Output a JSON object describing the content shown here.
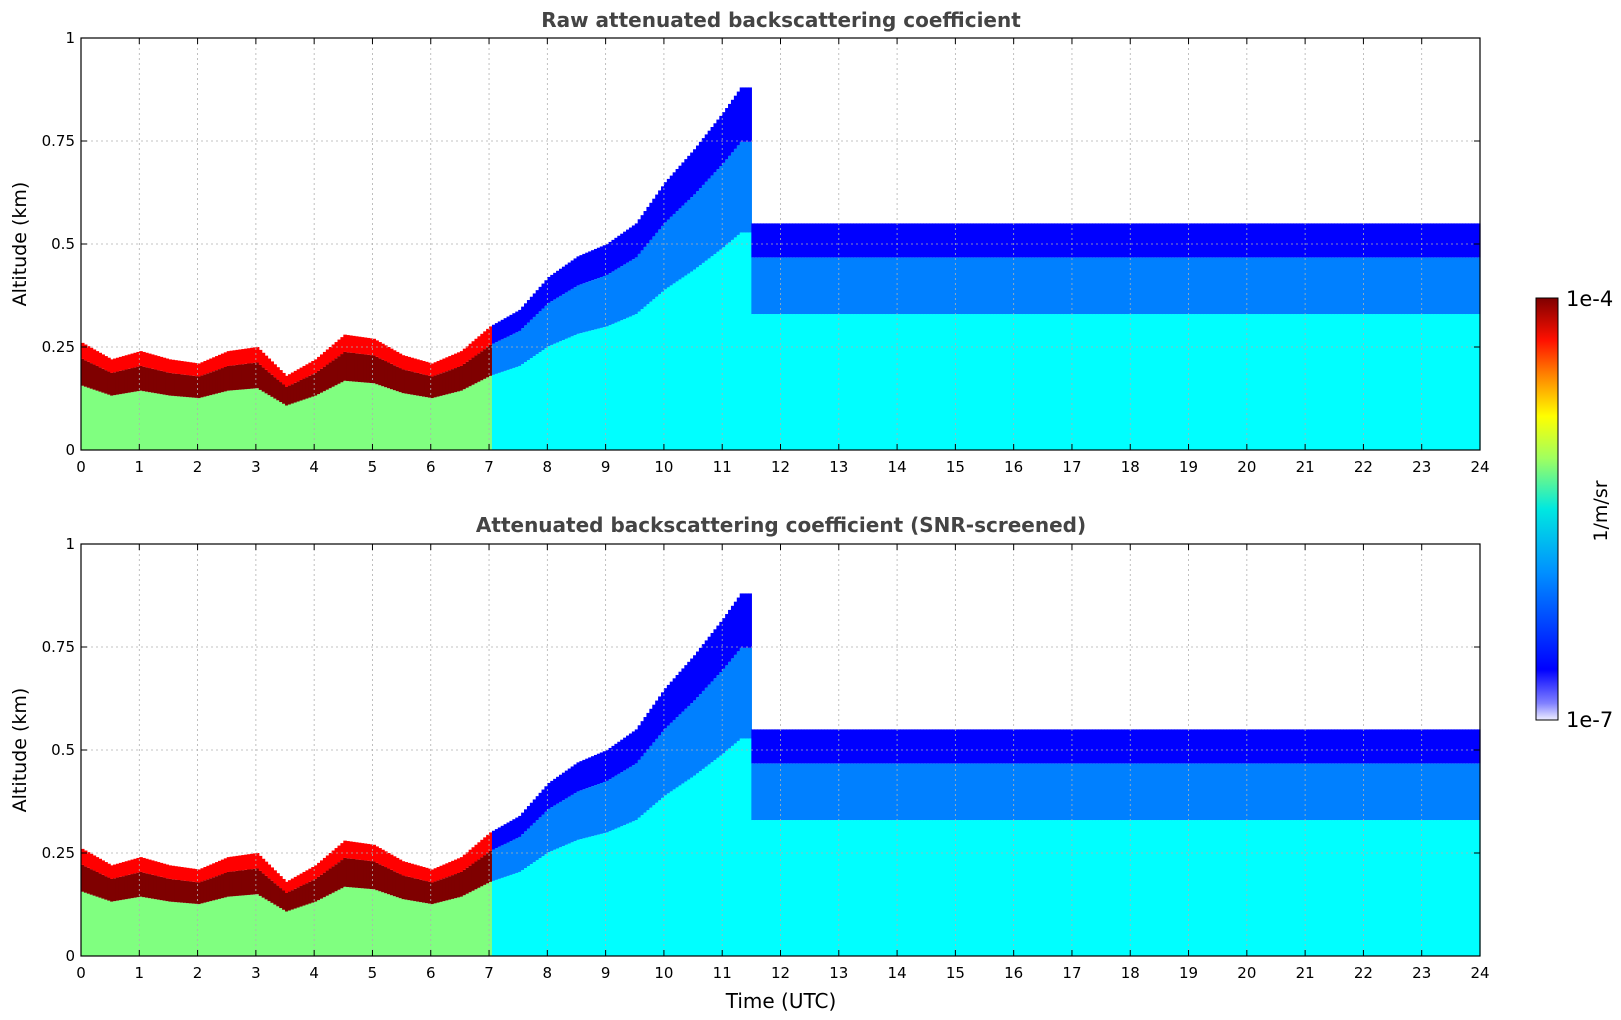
{
  "chart_data": [
    {
      "type": "heatmap",
      "title": "Raw attenuated backscattering coefficient",
      "xlabel": "",
      "ylabel": "Altitude (km)",
      "xlim": [
        0,
        24
      ],
      "ylim": [
        0,
        1
      ],
      "x_ticks": [
        "0",
        "1",
        "2",
        "3",
        "4",
        "5",
        "6",
        "7",
        "8",
        "9",
        "10",
        "11",
        "12",
        "13",
        "14",
        "15",
        "16",
        "17",
        "18",
        "19",
        "20",
        "21",
        "22",
        "23",
        "24"
      ],
      "y_ticks": [
        "0",
        "0.25",
        "0.5",
        "0.75",
        "1"
      ],
      "grid": true,
      "layer_top_km": [
        [
          0.0,
          0.26
        ],
        [
          0.5,
          0.22
        ],
        [
          1.0,
          0.24
        ],
        [
          1.5,
          0.22
        ],
        [
          2.0,
          0.21
        ],
        [
          2.5,
          0.24
        ],
        [
          3.0,
          0.25
        ],
        [
          3.5,
          0.18
        ],
        [
          4.0,
          0.22
        ],
        [
          4.5,
          0.28
        ],
        [
          5.0,
          0.27
        ],
        [
          5.5,
          0.23
        ],
        [
          6.0,
          0.21
        ],
        [
          6.5,
          0.24
        ],
        [
          7.0,
          0.3
        ],
        [
          7.5,
          0.34
        ],
        [
          8.0,
          0.42
        ],
        [
          8.5,
          0.47
        ],
        [
          9.0,
          0.5
        ],
        [
          9.5,
          0.55
        ],
        [
          10.0,
          0.65
        ],
        [
          10.5,
          0.73
        ],
        [
          11.0,
          0.82
        ],
        [
          11.3,
          0.88
        ]
      ],
      "colorbar": {
        "min_label": "1e-7",
        "max_label": "1e-4",
        "label": "1/m/sr",
        "scale": "log"
      }
    },
    {
      "type": "heatmap",
      "title": "Attenuated backscattering coefficient (SNR-screened)",
      "xlabel": "Time (UTC)",
      "ylabel": "Altitude (km)",
      "xlim": [
        0,
        24
      ],
      "ylim": [
        0,
        1
      ],
      "x_ticks": [
        "0",
        "1",
        "2",
        "3",
        "4",
        "5",
        "6",
        "7",
        "8",
        "9",
        "10",
        "11",
        "12",
        "13",
        "14",
        "15",
        "16",
        "17",
        "18",
        "19",
        "20",
        "21",
        "22",
        "23",
        "24"
      ],
      "y_ticks": [
        "0",
        "0.25",
        "0.5",
        "0.75",
        "1"
      ],
      "grid": true,
      "layer_top_km": [
        [
          0.0,
          0.26
        ],
        [
          0.5,
          0.22
        ],
        [
          1.0,
          0.24
        ],
        [
          1.5,
          0.22
        ],
        [
          2.0,
          0.21
        ],
        [
          2.5,
          0.24
        ],
        [
          3.0,
          0.25
        ],
        [
          3.5,
          0.18
        ],
        [
          4.0,
          0.22
        ],
        [
          4.5,
          0.28
        ],
        [
          5.0,
          0.27
        ],
        [
          5.5,
          0.23
        ],
        [
          6.0,
          0.21
        ],
        [
          6.5,
          0.24
        ],
        [
          7.0,
          0.3
        ],
        [
          7.5,
          0.34
        ],
        [
          8.0,
          0.42
        ],
        [
          8.5,
          0.47
        ],
        [
          9.0,
          0.5
        ],
        [
          9.5,
          0.55
        ],
        [
          10.0,
          0.65
        ],
        [
          10.5,
          0.73
        ],
        [
          11.0,
          0.82
        ],
        [
          11.3,
          0.88
        ]
      ],
      "colorbar": {
        "min_label": "1e-7",
        "max_label": "1e-4",
        "label": "1/m/sr",
        "scale": "log"
      }
    }
  ],
  "colorbar": {
    "max_label": "1e-4",
    "min_label": "1e-7",
    "label": "1/m/sr",
    "colormap": [
      "#7f0000",
      "#ff0000",
      "#ff8000",
      "#ffff00",
      "#80ff80",
      "#00ffff",
      "#0080ff",
      "#0000ff",
      "#6060ff",
      "#e8e8ff"
    ]
  }
}
